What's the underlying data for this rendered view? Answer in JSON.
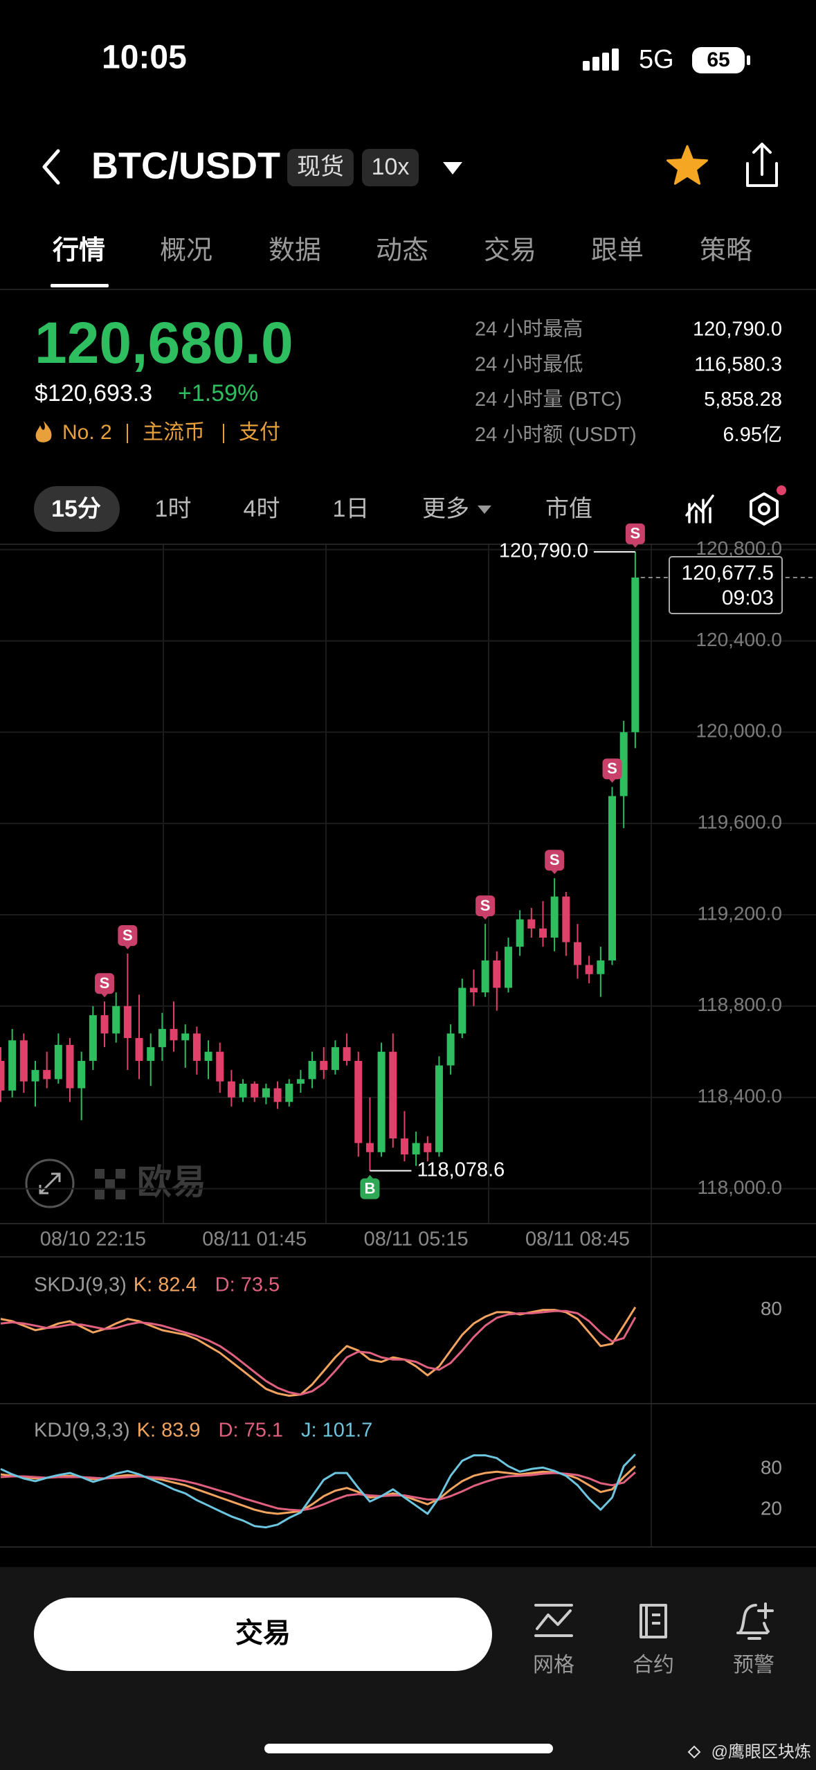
{
  "status_bar": {
    "time": "10:05",
    "network": "5G",
    "battery": 65
  },
  "header": {
    "pair": "BTC/USDT",
    "tags": [
      "现货",
      "10x"
    ]
  },
  "tabs": [
    "行情",
    "概况",
    "数据",
    "动态",
    "交易",
    "跟单",
    "策略"
  ],
  "ticker": {
    "price": "120,680.0",
    "usd_price": "$120,693.3",
    "change": "+1.59%",
    "rank": "No. 2",
    "tags": [
      "主流币",
      "支付"
    ]
  },
  "stats": [
    {
      "label": "24 小时最高",
      "value": "120,790.0"
    },
    {
      "label": "24 小时最低",
      "value": "116,580.3"
    },
    {
      "label": "24 小时量 (BTC)",
      "value": "5,858.28"
    },
    {
      "label": "24 小时额 (USDT)",
      "value": "6.95亿"
    }
  ],
  "intervals": [
    "15分",
    "1时",
    "4时",
    "1日",
    "更多",
    "市值"
  ],
  "chart_data": [
    {
      "type": "candlestick",
      "categories": [
        null,
        null,
        null,
        null,
        null,
        null,
        null,
        null,
        "08/10 22:15",
        null,
        null,
        null,
        null,
        null,
        null,
        null,
        null,
        null,
        null,
        null,
        null,
        null,
        "08/11 01:45",
        null,
        null,
        null,
        null,
        null,
        null,
        null,
        null,
        null,
        null,
        null,
        null,
        null,
        "08/11 05:15",
        null,
        null,
        null,
        null,
        null,
        null,
        null,
        null,
        null,
        null,
        null,
        null,
        null,
        "08/11 08:45",
        null,
        null,
        null,
        null,
        null
      ],
      "open": [
        118560,
        118430,
        118650,
        118470,
        118520,
        118480,
        118630,
        118440,
        118560,
        118760,
        118680,
        118800,
        118660,
        118560,
        118620,
        118700,
        118650,
        118680,
        118560,
        118600,
        118470,
        118400,
        118460,
        118400,
        118440,
        118380,
        118460,
        118480,
        118560,
        118520,
        118620,
        118560,
        118200,
        118160,
        118600,
        118220,
        118150,
        118200,
        118160,
        118540,
        118680,
        118880,
        118860,
        119000,
        118880,
        119060,
        119180,
        119140,
        119100,
        119280,
        119080,
        118980,
        118940,
        119000,
        119720,
        120000
      ],
      "high": [
        118620,
        118700,
        118680,
        118560,
        118600,
        118680,
        118660,
        118600,
        118800,
        118820,
        118860,
        119030,
        118850,
        118680,
        118770,
        118820,
        118720,
        118710,
        118650,
        118640,
        118520,
        118480,
        118470,
        118460,
        118470,
        118480,
        118520,
        118600,
        118620,
        118650,
        118680,
        118600,
        118400,
        118640,
        118680,
        118340,
        118250,
        118230,
        118580,
        118720,
        118920,
        118960,
        119160,
        119040,
        119100,
        119220,
        119230,
        119260,
        119360,
        119300,
        119160,
        119020,
        119060,
        119760,
        120050,
        120790
      ],
      "low": [
        118380,
        118400,
        118420,
        118360,
        118440,
        118460,
        118380,
        118300,
        118520,
        118620,
        118640,
        118520,
        118480,
        118450,
        118560,
        118600,
        118530,
        118500,
        118480,
        118420,
        118360,
        118380,
        118380,
        118370,
        118350,
        118360,
        118420,
        118440,
        118480,
        118500,
        118540,
        118140,
        118078.6,
        118140,
        118180,
        118120,
        118100,
        118120,
        118140,
        118500,
        118660,
        118800,
        118840,
        118780,
        118860,
        119020,
        119100,
        119060,
        119040,
        119020,
        118920,
        118900,
        118840,
        118980,
        119580,
        119930
      ],
      "close": [
        118430,
        118650,
        118470,
        118520,
        118480,
        118630,
        118440,
        118560,
        118760,
        118680,
        118800,
        118660,
        118560,
        118620,
        118700,
        118650,
        118680,
        118560,
        118600,
        118470,
        118400,
        118460,
        118400,
        118440,
        118380,
        118460,
        118480,
        118560,
        118520,
        118620,
        118560,
        118200,
        118160,
        118600,
        118220,
        118150,
        118200,
        118160,
        118540,
        118680,
        118880,
        118860,
        119000,
        118880,
        119060,
        119180,
        119140,
        119100,
        119280,
        119080,
        118980,
        118940,
        119000,
        119720,
        120000,
        120677.5
      ],
      "signals": [
        null,
        null,
        null,
        null,
        null,
        null,
        null,
        null,
        null,
        "S",
        null,
        "S",
        null,
        null,
        null,
        null,
        null,
        null,
        null,
        null,
        null,
        null,
        null,
        null,
        null,
        null,
        null,
        null,
        null,
        null,
        null,
        null,
        "B",
        null,
        null,
        null,
        null,
        null,
        null,
        null,
        null,
        null,
        "S",
        null,
        null,
        null,
        null,
        null,
        "S",
        null,
        null,
        null,
        null,
        "S",
        null,
        "S"
      ],
      "up_color": "#2ebd5f",
      "down_color": "#e0416b",
      "ylim": [
        117850,
        120820
      ],
      "yticks": [
        {
          "value": 118000,
          "label": "118,000.0"
        },
        {
          "value": 118400,
          "label": "118,400.0"
        },
        {
          "value": 118800,
          "label": "118,800.0"
        },
        {
          "value": 119200,
          "label": "119,200.0"
        },
        {
          "value": 119600,
          "label": "119,600.0"
        },
        {
          "value": 120000,
          "label": "120,000.0"
        },
        {
          "value": 120400,
          "label": "120,400.0"
        },
        {
          "value": 120800,
          "label": "120,800.0"
        }
      ],
      "grid": true,
      "last_price": {
        "value": 120677.5,
        "label": "120,677.5",
        "countdown": "09:03"
      },
      "annotations": [
        {
          "value": 120790,
          "label": "120,790.0"
        },
        {
          "value": 118078.6,
          "label": "118,078.6"
        }
      ]
    },
    {
      "type": "line",
      "title": "SKDJ(9,3)",
      "ylim": [
        0,
        100
      ],
      "yticks": [
        80
      ],
      "series": [
        {
          "name": "K: 82.4",
          "color": "#f2a35e",
          "values": [
            72,
            70,
            66,
            62,
            64,
            68,
            70,
            65,
            60,
            63,
            68,
            72,
            70,
            66,
            62,
            60,
            58,
            54,
            48,
            42,
            34,
            26,
            18,
            10,
            6,
            4,
            5,
            14,
            26,
            38,
            48,
            44,
            36,
            34,
            38,
            36,
            30,
            22,
            30,
            44,
            58,
            68,
            74,
            78,
            78,
            76,
            78,
            80,
            80,
            78,
            72,
            60,
            48,
            50,
            66,
            82.4
          ]
        },
        {
          "name": "D: 73.5",
          "color": "#e0607f",
          "values": [
            68,
            69,
            68,
            66,
            64,
            65,
            67,
            67,
            65,
            63,
            64,
            67,
            69,
            68,
            66,
            63,
            60,
            57,
            53,
            48,
            41,
            33,
            25,
            17,
            11,
            7,
            5,
            8,
            15,
            26,
            38,
            43,
            42,
            38,
            36,
            36,
            34,
            29,
            27,
            33,
            44,
            56,
            66,
            73,
            76,
            77,
            77,
            78,
            79,
            79,
            77,
            70,
            60,
            52,
            55,
            73.5
          ]
        }
      ]
    },
    {
      "type": "line",
      "title": "KDJ(9,3,3)",
      "ylim": [
        -40,
        120
      ],
      "yticks": [
        80,
        20
      ],
      "series": [
        {
          "name": "K: 83.9",
          "color": "#f2a35e",
          "values": [
            72,
            70,
            68,
            66,
            67,
            69,
            70,
            68,
            65,
            66,
            69,
            71,
            70,
            67,
            64,
            60,
            56,
            50,
            44,
            38,
            32,
            26,
            20,
            16,
            14,
            16,
            18,
            28,
            40,
            48,
            52,
            46,
            38,
            40,
            44,
            40,
            34,
            28,
            36,
            50,
            62,
            70,
            74,
            76,
            74,
            72,
            74,
            76,
            75,
            72,
            66,
            56,
            46,
            50,
            68,
            83.9
          ]
        },
        {
          "name": "D: 75.1",
          "color": "#e0607f",
          "values": [
            68,
            69,
            69,
            68,
            67,
            68,
            68,
            68,
            67,
            66,
            67,
            68,
            69,
            68,
            67,
            65,
            62,
            58,
            53,
            48,
            43,
            37,
            32,
            27,
            22,
            20,
            19,
            22,
            28,
            35,
            41,
            43,
            41,
            40,
            41,
            41,
            38,
            35,
            35,
            40,
            47,
            55,
            61,
            66,
            69,
            70,
            71,
            73,
            74,
            73,
            71,
            66,
            59,
            56,
            60,
            75.1
          ]
        },
        {
          "name": "J: 101.7",
          "color": "#6cc6df",
          "values": [
            80,
            72,
            66,
            62,
            67,
            71,
            74,
            68,
            61,
            66,
            73,
            77,
            72,
            65,
            58,
            50,
            44,
            34,
            26,
            18,
            10,
            4,
            -4,
            -6,
            -2,
            8,
            16,
            40,
            64,
            74,
            74,
            52,
            32,
            40,
            50,
            38,
            26,
            14,
            38,
            70,
            92,
            100,
            100,
            96,
            84,
            76,
            80,
            82,
            77,
            70,
            56,
            36,
            20,
            38,
            84,
            101.7
          ]
        }
      ]
    }
  ],
  "actions": {
    "trade": "交易",
    "tools": [
      "网格",
      "合约",
      "预警"
    ]
  },
  "brand": "欧易",
  "watermark": "@鹰眼区块炼"
}
